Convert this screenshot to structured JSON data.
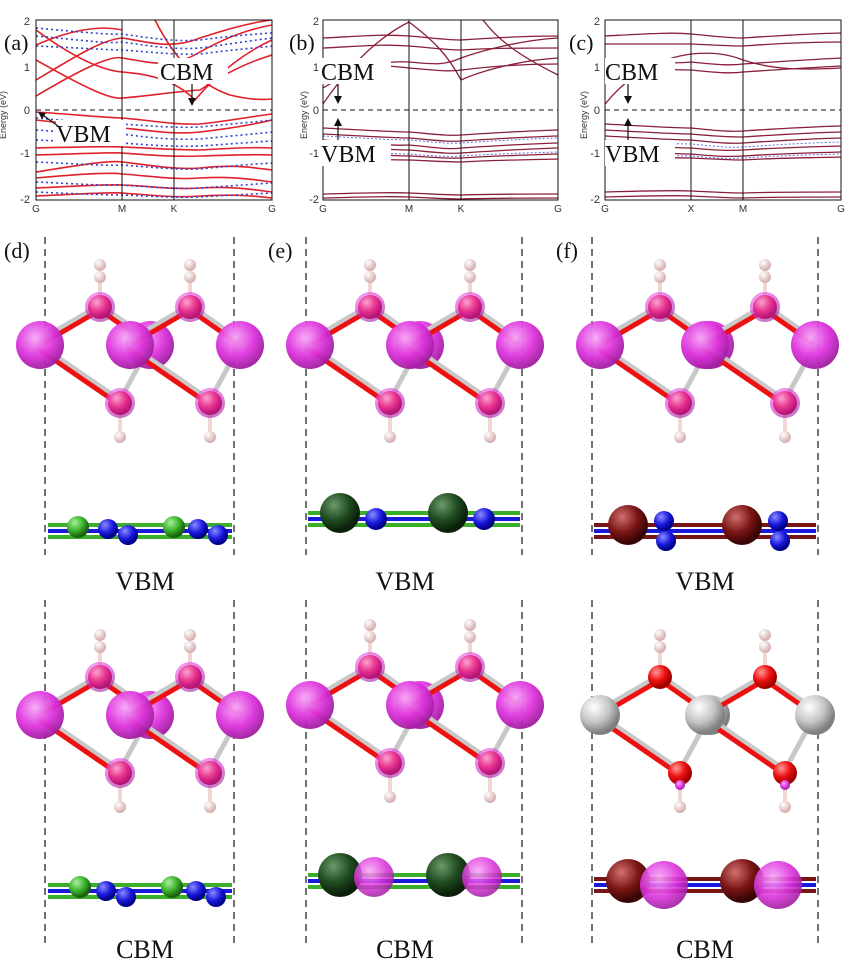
{
  "figure": {
    "band_panels": [
      {
        "letter": "(a)",
        "ylabel": "Energy (eV)",
        "kpoints": [
          "G",
          "M",
          "K",
          "G"
        ],
        "yticks": [
          "2",
          "1",
          "0",
          "-1",
          "-2"
        ],
        "cbm_label": "CBM",
        "vbm_label": "VBM"
      },
      {
        "letter": "(b)",
        "ylabel": "Energy (eV)",
        "kpoints": [
          "G",
          "M",
          "K",
          "G"
        ],
        "yticks": [
          "2",
          "1",
          "0",
          "-1",
          "-2"
        ],
        "cbm_label": "CBM",
        "vbm_label": "VBM"
      },
      {
        "letter": "(c)",
        "ylabel": "Energy (eV)",
        "kpoints": [
          "G",
          "X",
          "M",
          "G"
        ],
        "yticks": [
          "2",
          "1",
          "0",
          "-1",
          "-2"
        ],
        "cbm_label": "CBM",
        "vbm_label": "VBM"
      }
    ],
    "structure_panels": [
      {
        "letter": "(d)",
        "top_caption": "VBM",
        "bottom_caption": "CBM"
      },
      {
        "letter": "(e)",
        "top_caption": "VBM",
        "bottom_caption": "CBM"
      },
      {
        "letter": "(f)",
        "top_caption": "VBM",
        "bottom_caption": "CBM"
      }
    ],
    "colors": {
      "band_red": "#e0202a",
      "band_blue_dotted": "#3344cc",
      "orbital_magenta": "#dd33dd",
      "oxygen_red": "#ee1111",
      "hydrogen_pink": "#f2d6d6",
      "metal_gray": "#b5b5b5",
      "green_atom": "#3ab02a",
      "nitrogen_blue": "#1a1add",
      "dark_green_atom": "#1f4a1f",
      "dark_red_atom": "#7a1515"
    }
  },
  "chart_data": [
    {
      "type": "line",
      "panel": "(a)",
      "ylabel": "Energy (eV)",
      "ylim": [
        -2,
        2
      ],
      "x": [
        "G",
        "M",
        "K",
        "G"
      ],
      "fermi_level": 0,
      "annotations": [
        {
          "text": "CBM",
          "x": "K",
          "y": 0.1
        },
        {
          "text": "VBM",
          "x": "G",
          "y": 0.0
        }
      ]
    },
    {
      "type": "line",
      "panel": "(b)",
      "ylabel": "Energy (eV)",
      "ylim": [
        -2,
        2
      ],
      "x": [
        "G",
        "M",
        "K",
        "G"
      ],
      "fermi_level": 0,
      "annotations": [
        {
          "text": "CBM",
          "x": "G",
          "y": 0.2
        },
        {
          "text": "VBM",
          "x": "G",
          "y": -0.5
        }
      ]
    },
    {
      "type": "line",
      "panel": "(c)",
      "ylabel": "Energy (eV)",
      "ylim": [
        -2,
        2
      ],
      "x": [
        "G",
        "X",
        "M",
        "G"
      ],
      "fermi_level": 0,
      "annotations": [
        {
          "text": "CBM",
          "x": "G",
          "y": 0.2
        },
        {
          "text": "VBM",
          "x": "G",
          "y": -0.4
        }
      ]
    }
  ]
}
